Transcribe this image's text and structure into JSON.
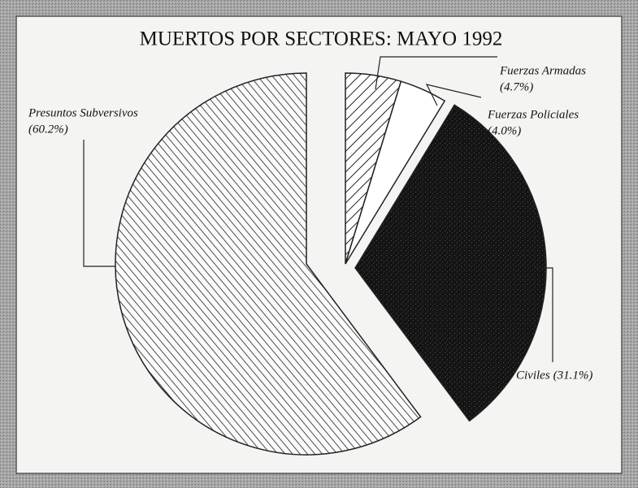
{
  "chart_data": {
    "type": "pie",
    "title": "MUERTOS POR SECTORES: MAYO 1992",
    "categories": [
      "Fuerzas Armadas",
      "Fuerzas Policiales",
      "Civiles",
      "Presuntos Subversivos"
    ],
    "values": [
      4.7,
      4.0,
      31.1,
      60.2
    ],
    "value_labels": [
      "(4.7%)",
      "(4.0%)",
      "(31.1%)",
      "(60.2%)"
    ]
  }
}
